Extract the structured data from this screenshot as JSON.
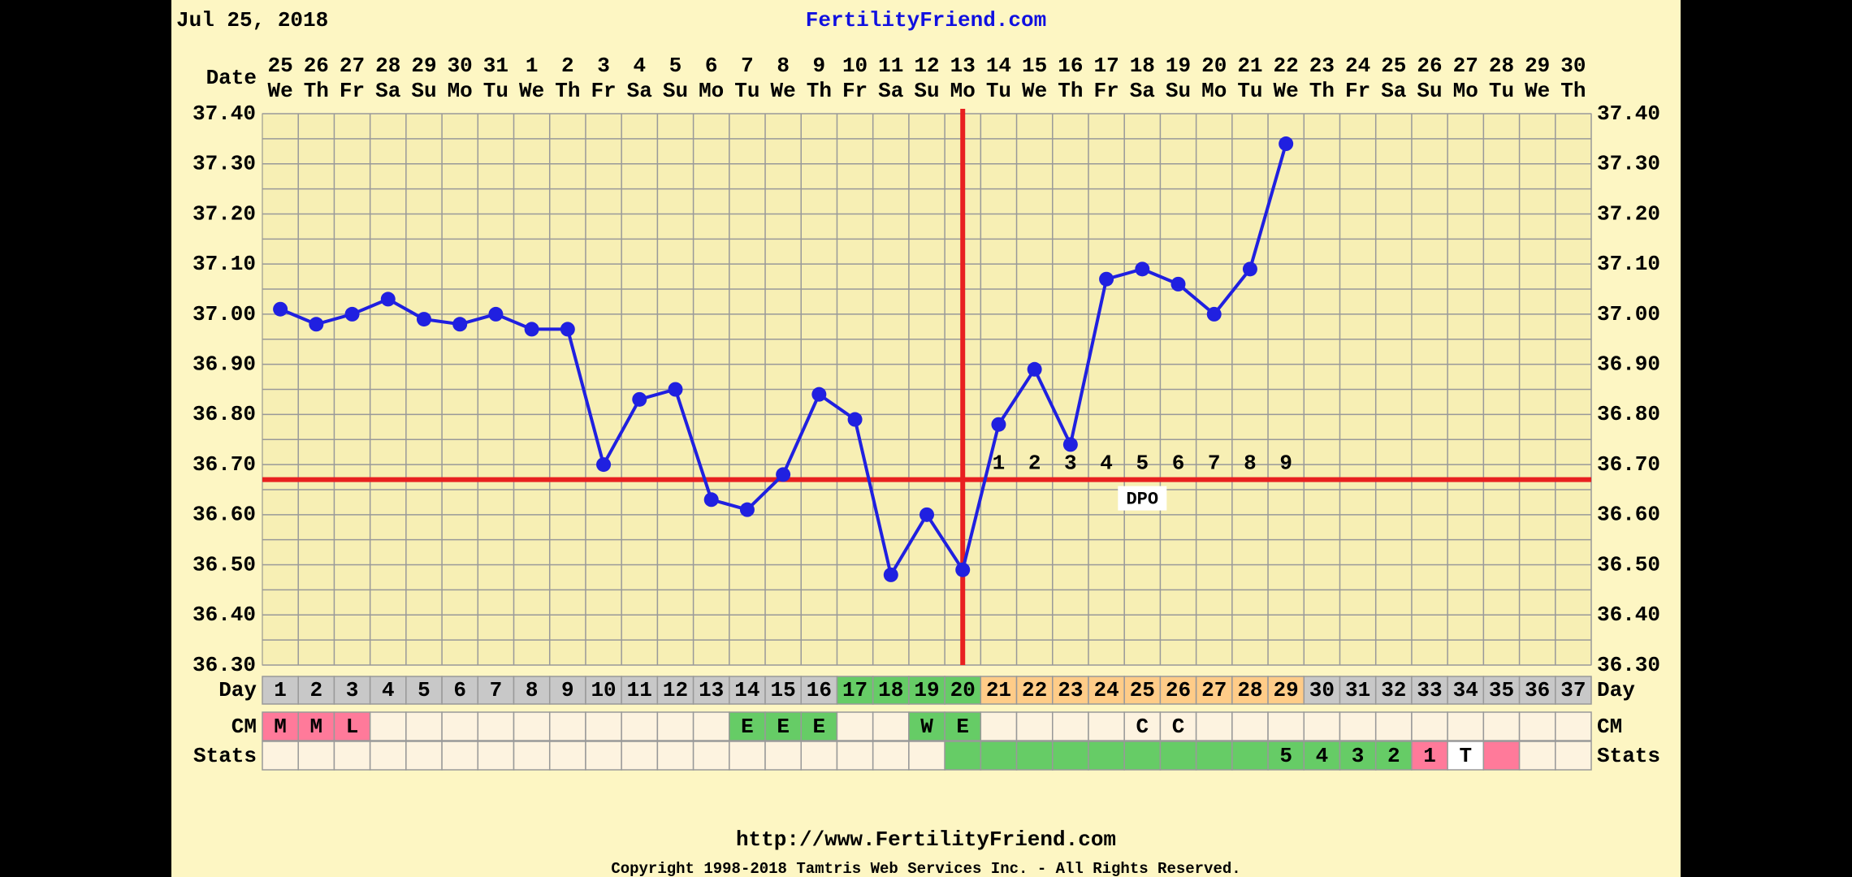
{
  "header": {
    "date": "Jul 25, 2018",
    "site": "FertilityFriend.com"
  },
  "chart_data": {
    "type": "line",
    "date_label": "Date",
    "day_label": "Day",
    "cm_label": "CM",
    "stats_label": "Stats",
    "dpo_label": "DPO",
    "categories": [
      "25",
      "26",
      "27",
      "28",
      "29",
      "30",
      "31",
      "1",
      "2",
      "3",
      "4",
      "5",
      "6",
      "7",
      "8",
      "9",
      "10",
      "11",
      "12",
      "13",
      "14",
      "15",
      "16",
      "17",
      "18",
      "19",
      "20",
      "21",
      "22",
      "23",
      "24",
      "25",
      "26",
      "27",
      "28",
      "29",
      "30"
    ],
    "weekdays": [
      "We",
      "Th",
      "Fr",
      "Sa",
      "Su",
      "Mo",
      "Tu",
      "We",
      "Th",
      "Fr",
      "Sa",
      "Su",
      "Mo",
      "Tu",
      "We",
      "Th",
      "Fr",
      "Sa",
      "Su",
      "Mo",
      "Tu",
      "We",
      "Th",
      "Fr",
      "Sa",
      "Su",
      "Mo",
      "Tu",
      "We",
      "Th",
      "Fr",
      "Sa",
      "Su",
      "Mo",
      "Tu",
      "We",
      "Th"
    ],
    "days": [
      1,
      2,
      3,
      4,
      5,
      6,
      7,
      8,
      9,
      10,
      11,
      12,
      13,
      14,
      15,
      16,
      17,
      18,
      19,
      20,
      21,
      22,
      23,
      24,
      25,
      26,
      27,
      28,
      29,
      30,
      31,
      32,
      33,
      34,
      35,
      36,
      37
    ],
    "series": [
      {
        "name": "Temperature",
        "color": "#2020e0",
        "values": [
          37.01,
          36.98,
          37.0,
          37.03,
          36.99,
          36.98,
          37.0,
          36.97,
          36.97,
          36.7,
          36.83,
          36.85,
          36.63,
          36.61,
          36.68,
          36.84,
          36.79,
          36.48,
          36.6,
          36.49,
          36.78,
          36.89,
          36.74,
          37.07,
          37.09,
          37.06,
          37.0,
          37.09,
          37.34,
          null,
          null,
          null,
          null,
          null,
          null,
          null,
          null
        ]
      }
    ],
    "coverline": 36.67,
    "ovulation_day": 20,
    "line_color": "#e82020",
    "dpo": [
      null,
      null,
      null,
      null,
      null,
      null,
      null,
      null,
      null,
      null,
      null,
      null,
      null,
      null,
      null,
      null,
      null,
      null,
      null,
      null,
      1,
      2,
      3,
      4,
      5,
      6,
      7,
      8,
      9,
      null,
      null,
      null,
      null,
      null,
      null,
      null,
      null
    ],
    "cm": [
      "M",
      "M",
      "L",
      null,
      null,
      null,
      null,
      null,
      null,
      null,
      null,
      null,
      null,
      "E",
      "E",
      "E",
      null,
      null,
      "W",
      "E",
      null,
      null,
      null,
      null,
      "C",
      "C",
      null,
      null,
      null,
      null,
      null,
      null,
      null,
      null,
      null,
      null,
      null
    ],
    "stats": [
      null,
      null,
      null,
      null,
      null,
      null,
      null,
      null,
      null,
      null,
      null,
      null,
      null,
      null,
      null,
      null,
      null,
      null,
      null,
      null,
      null,
      null,
      null,
      null,
      null,
      null,
      null,
      null,
      "5",
      "4",
      "3",
      "2",
      "1",
      "T",
      null,
      null,
      null
    ],
    "day_colors": [
      "#c8c8c8",
      "#c8c8c8",
      "#c8c8c8",
      "#c8c8c8",
      "#c8c8c8",
      "#c8c8c8",
      "#c8c8c8",
      "#c8c8c8",
      "#c8c8c8",
      "#c8c8c8",
      "#c8c8c8",
      "#c8c8c8",
      "#c8c8c8",
      "#c8c8c8",
      "#c8c8c8",
      "#c8c8c8",
      "#66cc66",
      "#66cc66",
      "#66cc66",
      "#66cc66",
      "#ffcc88",
      "#ffcc88",
      "#ffcc88",
      "#ffcc88",
      "#ffcc88",
      "#ffcc88",
      "#ffcc88",
      "#ffcc88",
      "#ffcc88",
      "#c8c8c8",
      "#c8c8c8",
      "#c8c8c8",
      "#c8c8c8",
      "#c8c8c8",
      "#c8c8c8",
      "#c8c8c8",
      "#c8c8c8"
    ],
    "cm_colors": [
      "#ff7a9a",
      "#ff7a9a",
      "#ff7a9a",
      "#fdf3e0",
      "#fdf3e0",
      "#fdf3e0",
      "#fdf3e0",
      "#fdf3e0",
      "#fdf3e0",
      "#fdf3e0",
      "#fdf3e0",
      "#fdf3e0",
      "#fdf3e0",
      "#66cc66",
      "#66cc66",
      "#66cc66",
      "#fdf3e0",
      "#fdf3e0",
      "#66cc66",
      "#66cc66",
      "#fdf3e0",
      "#fdf3e0",
      "#fdf3e0",
      "#fdf3e0",
      "#fdf3e0",
      "#fdf3e0",
      "#fdf3e0",
      "#fdf3e0",
      "#fdf3e0",
      "#fdf3e0",
      "#fdf3e0",
      "#fdf3e0",
      "#fdf3e0",
      "#fdf3e0",
      "#fdf3e0",
      "#fdf3e0",
      "#fdf3e0"
    ],
    "stats_colors": [
      "#fdf3e0",
      "#fdf3e0",
      "#fdf3e0",
      "#fdf3e0",
      "#fdf3e0",
      "#fdf3e0",
      "#fdf3e0",
      "#fdf3e0",
      "#fdf3e0",
      "#fdf3e0",
      "#fdf3e0",
      "#fdf3e0",
      "#fdf3e0",
      "#fdf3e0",
      "#fdf3e0",
      "#fdf3e0",
      "#fdf3e0",
      "#fdf3e0",
      "#fdf3e0",
      "#66cc66",
      "#66cc66",
      "#66cc66",
      "#66cc66",
      "#66cc66",
      "#66cc66",
      "#66cc66",
      "#66cc66",
      "#66cc66",
      "#66cc66",
      "#66cc66",
      "#66cc66",
      "#66cc66",
      "#ff7a9a",
      "#ffffff",
      "#ff7a9a",
      "#fdf3e0",
      "#fdf3e0"
    ],
    "ylim": [
      36.3,
      37.4
    ],
    "yticks": [
      {
        "value": 36.3,
        "label": "36.30"
      },
      {
        "value": 36.4,
        "label": "36.40"
      },
      {
        "value": 36.5,
        "label": "36.50"
      },
      {
        "value": 36.6,
        "label": "36.60"
      },
      {
        "value": 36.7,
        "label": "36.70"
      },
      {
        "value": 36.8,
        "label": "36.80"
      },
      {
        "value": 36.9,
        "label": "36.90"
      },
      {
        "value": 37.0,
        "label": "37.00"
      },
      {
        "value": 37.1,
        "label": "37.10"
      },
      {
        "value": 37.2,
        "label": "37.20"
      },
      {
        "value": 37.3,
        "label": "37.30"
      },
      {
        "value": 37.4,
        "label": "37.40"
      }
    ],
    "grid": true
  },
  "footer": {
    "url": "http://www.FertilityFriend.com",
    "copyright": "Copyright 1998-2018 Tamtris Web Services Inc. - All Rights Reserved."
  }
}
